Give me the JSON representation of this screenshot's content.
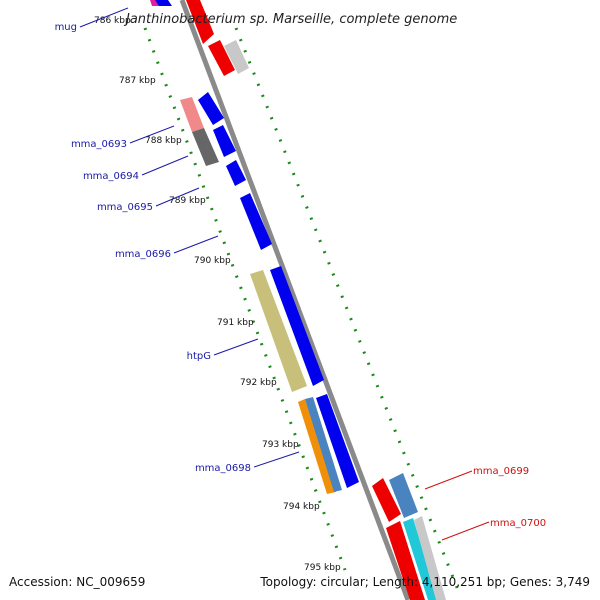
{
  "title": "Janthinobacterium sp. Marseille, complete genome",
  "accession_label": "Accession: NC_009659",
  "topology_label": "Topology: circular; Length: 4,110,251 bp; Genes: 3,749",
  "colors": {
    "backbone": "#8a8a8a",
    "gc_dots": "#1a8a1a",
    "label_forward": "#1a1aa8",
    "label_reverse": "#d01010",
    "blue_gene": "#0000ee",
    "red_gene": "#ee0000",
    "pink_gene": "#f08a8a",
    "dark_gray_gene": "#666666",
    "light_gray_gene": "#c8c8c8",
    "olive_gene": "#c8c07a",
    "orange_gene": "#f0900a",
    "steel_gene": "#4a84c0",
    "cyan_gene": "#20c8d8",
    "magenta_gene": "#e020a0"
  },
  "ticks": [
    "786 kbp",
    "787 kbp",
    "788 kbp",
    "789 kbp",
    "790 kbp",
    "791 kbp",
    "792 kbp",
    "793 kbp",
    "794 kbp",
    "795 kbp"
  ],
  "forward_labels": [
    "mug",
    "mma_0693",
    "mma_0694",
    "mma_0695",
    "mma_0696",
    "htpG",
    "mma_0698"
  ],
  "reverse_labels": [
    "mma_0699",
    "mma_0700"
  ]
}
